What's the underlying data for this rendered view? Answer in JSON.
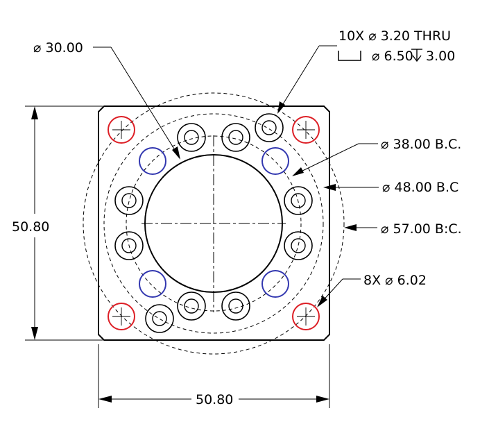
{
  "annotations": {
    "bore_dia": "⌀ 30.00",
    "thru_note": "10X  ⌀ 3.20 THRU",
    "cbore_note": "⌀ 6.50",
    "cbore_depth": "3.00",
    "bc_38": "⌀ 38.00 B.C.",
    "bc_48": "⌀ 48.00 B.C",
    "bc_57": "⌀ 57.00 B:C.",
    "holes_8x": "8X  ⌀ 6.02",
    "height_dim": "50.80",
    "width_dim": "50.80"
  },
  "colors": {
    "line": "#000000",
    "red_holes": "#dd1f26",
    "blue_holes": "#3338b0"
  },
  "features": {
    "counterbored_hole_count": 10,
    "red_hole_count": 4,
    "blue_hole_count": 4
  }
}
